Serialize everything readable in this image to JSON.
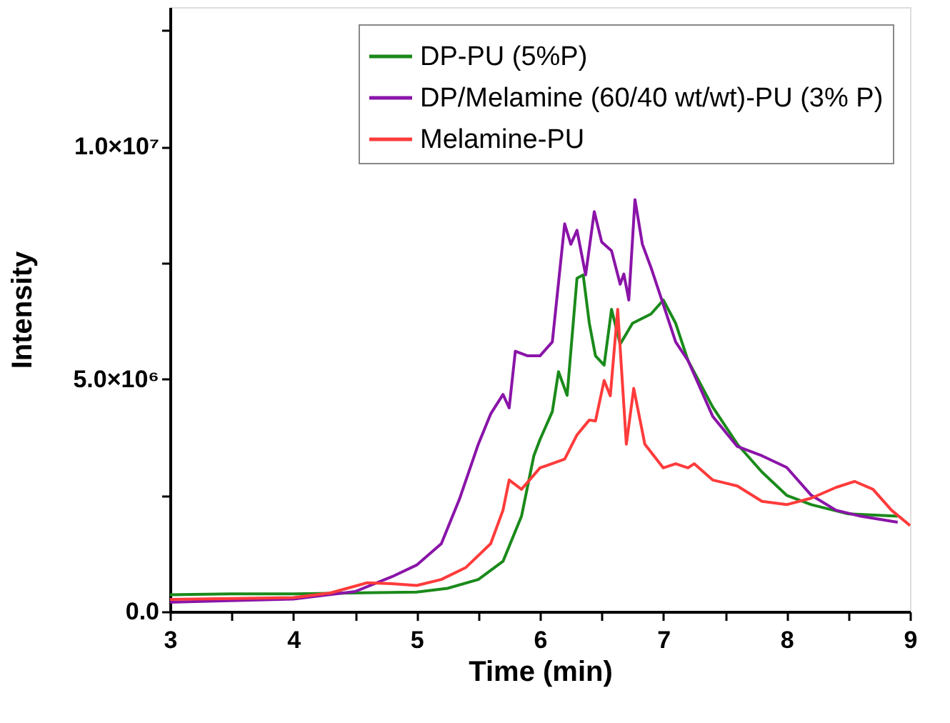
{
  "chart_data": {
    "type": "line",
    "xlabel": "Time (min)",
    "ylabel": "Intensity",
    "xlim": [
      3,
      9
    ],
    "ylim": [
      0,
      13000000
    ],
    "xticks": [
      3,
      {
        "value": 3.5,
        "label": null
      },
      4,
      {
        "value": 4.5,
        "label": null
      },
      5,
      {
        "value": 5.5,
        "label": null
      },
      6,
      {
        "value": 6.5,
        "label": null
      },
      7,
      {
        "value": 7.5,
        "label": null
      },
      8,
      {
        "value": 8.5,
        "label": null
      },
      9
    ],
    "yticks": [
      {
        "value": 0,
        "label": "0.0"
      },
      {
        "value": 2500000,
        "label": null
      },
      {
        "value": 5000000,
        "label": "5.0×10⁶"
      },
      {
        "value": 7500000,
        "label": null
      },
      {
        "value": 10000000,
        "label": "1.0×10⁷"
      },
      {
        "value": 12500000,
        "label": null
      }
    ],
    "grid": false,
    "legend": "top right",
    "marker": "none",
    "line_style": "solid",
    "series": [
      {
        "name": "DP-PU (5%P)",
        "color": "#1a8a1a",
        "x": [
          3,
          3.5,
          4,
          4.5,
          5,
          5.25,
          5.5,
          5.7,
          5.85,
          5.95,
          6,
          6.1,
          6.15,
          6.22,
          6.3,
          6.35,
          6.4,
          6.45,
          6.52,
          6.58,
          6.65,
          6.75,
          6.9,
          7,
          7.1,
          7.2,
          7.4,
          7.6,
          7.8,
          8,
          8.2,
          8.5,
          8.9
        ],
        "values": [
          360000,
          380000,
          380000,
          400000,
          420000,
          500000,
          690000,
          1080000,
          2050000,
          3350000,
          3700000,
          4300000,
          5160000,
          4650000,
          7170000,
          7240000,
          6200000,
          5500000,
          5300000,
          6500000,
          5750000,
          6200000,
          6400000,
          6700000,
          6200000,
          5400000,
          4400000,
          3600000,
          3000000,
          2500000,
          2300000,
          2100000,
          2050000
        ]
      },
      {
        "name": "DP/Melamine (60/40 wt/wt)-PU (3% P)",
        "color": "#8a14a8",
        "x": [
          3,
          4,
          4.5,
          4.8,
          5,
          5.2,
          5.35,
          5.5,
          5.6,
          5.7,
          5.75,
          5.8,
          5.9,
          6,
          6.1,
          6.2,
          6.25,
          6.3,
          6.37,
          6.44,
          6.5,
          6.58,
          6.65,
          6.68,
          6.72,
          6.77,
          6.83,
          6.9,
          7,
          7.1,
          7.2,
          7.4,
          7.6,
          7.8,
          8,
          8.2,
          8.4,
          8.6,
          8.9
        ],
        "values": [
          200000,
          270000,
          430000,
          750000,
          1000000,
          1460000,
          2440000,
          3600000,
          4250000,
          4670000,
          4380000,
          5600000,
          5500000,
          5500000,
          5800000,
          8340000,
          7900000,
          8200000,
          7240000,
          8600000,
          7950000,
          7760000,
          7040000,
          7260000,
          6700000,
          8860000,
          7900000,
          7400000,
          6600000,
          5800000,
          5400000,
          4200000,
          3550000,
          3350000,
          3100000,
          2500000,
          2180000,
          2050000,
          1920000
        ]
      },
      {
        "name": "Melamine-PU",
        "color": "#ff3b3b",
        "x": [
          3,
          4,
          4.3,
          4.6,
          4.8,
          5,
          5.2,
          5.4,
          5.6,
          5.7,
          5.75,
          5.85,
          6,
          6.2,
          6.3,
          6.4,
          6.45,
          6.52,
          6.57,
          6.63,
          6.7,
          6.76,
          6.85,
          7,
          7.1,
          7.2,
          7.25,
          7.4,
          7.6,
          7.8,
          8,
          8.2,
          8.4,
          8.55,
          8.7,
          8.85,
          9
        ],
        "values": [
          260000,
          300000,
          400000,
          620000,
          600000,
          560000,
          690000,
          950000,
          1460000,
          2180000,
          2830000,
          2630000,
          3090000,
          3280000,
          3800000,
          4120000,
          4100000,
          4970000,
          4640000,
          6500000,
          3600000,
          4800000,
          3600000,
          3090000,
          3180000,
          3090000,
          3180000,
          2830000,
          2700000,
          2370000,
          2300000,
          2440000,
          2670000,
          2800000,
          2630000,
          2180000,
          1850000
        ]
      }
    ]
  }
}
